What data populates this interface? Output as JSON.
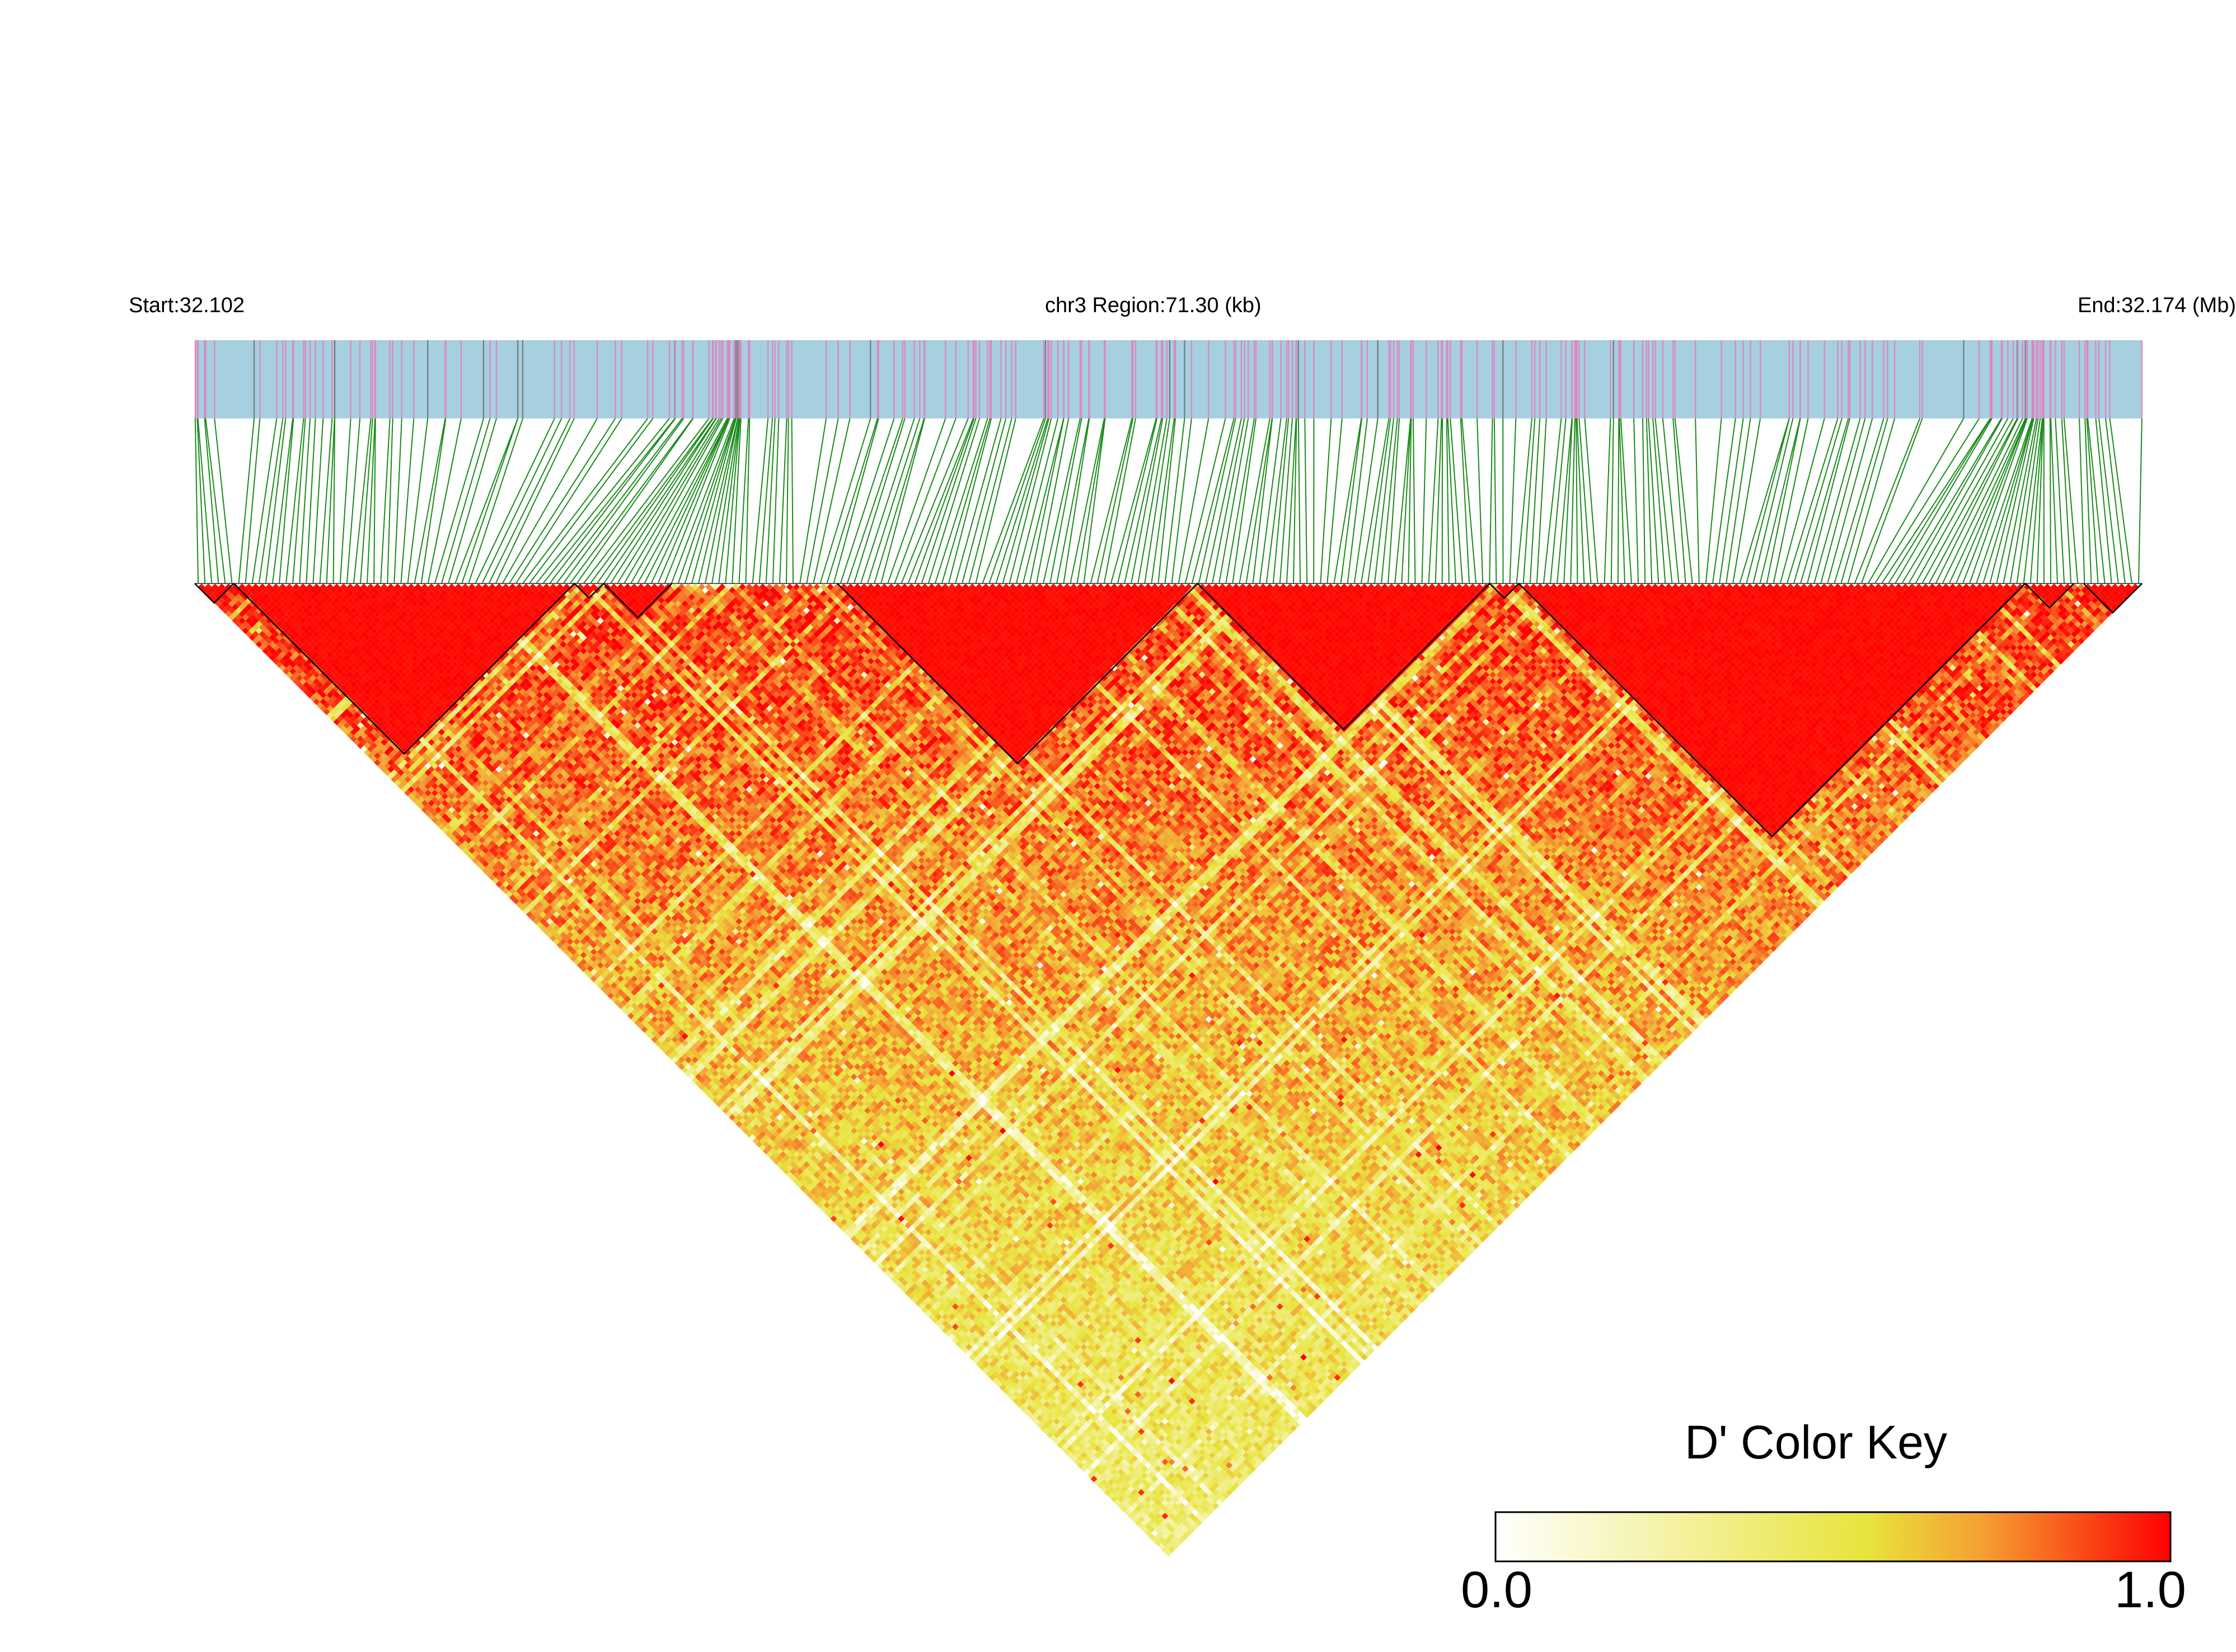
{
  "header": {
    "start_label": "Start:32.102",
    "region_label": "chr3 Region:71.30 (kb)",
    "end_label": "End:32.174 (Mb)"
  },
  "color_key": {
    "title": "D' Color Key",
    "min_label": "0.0",
    "max_label": "1.0",
    "colors": [
      "#ffffff",
      "#e8e43c",
      "#f5a033",
      "#ff0000"
    ]
  },
  "colors": {
    "track_background": "#a6cfe0",
    "snp_mark": "#de86c2",
    "snp_mark_dark": "#6e7d77",
    "connector": "#1a8a1a",
    "block_outline": "#000000"
  },
  "chart_data": {
    "type": "heatmap",
    "title": "",
    "metric": "D'",
    "chromosome": "chr3",
    "region_start_mb": 32.102,
    "region_end_mb": 32.174,
    "region_length_kb": 71.3,
    "value_range": [
      0.0,
      1.0
    ],
    "haplotype_blocks": [
      {
        "start_frac": 0.0,
        "end_frac": 0.02
      },
      {
        "start_frac": 0.02,
        "end_frac": 0.195
      },
      {
        "start_frac": 0.195,
        "end_frac": 0.21
      },
      {
        "start_frac": 0.21,
        "end_frac": 0.245
      },
      {
        "start_frac": 0.33,
        "end_frac": 0.515
      },
      {
        "start_frac": 0.515,
        "end_frac": 0.665
      },
      {
        "start_frac": 0.665,
        "end_frac": 0.68
      },
      {
        "start_frac": 0.68,
        "end_frac": 0.94
      },
      {
        "start_frac": 0.94,
        "end_frac": 0.965
      },
      {
        "start_frac": 0.97,
        "end_frac": 1.0
      }
    ],
    "dense_clusters": [
      {
        "center_frac": 0.275,
        "width_frac": 0.012
      },
      {
        "center_frac": 0.945,
        "width_frac": 0.01
      }
    ]
  }
}
